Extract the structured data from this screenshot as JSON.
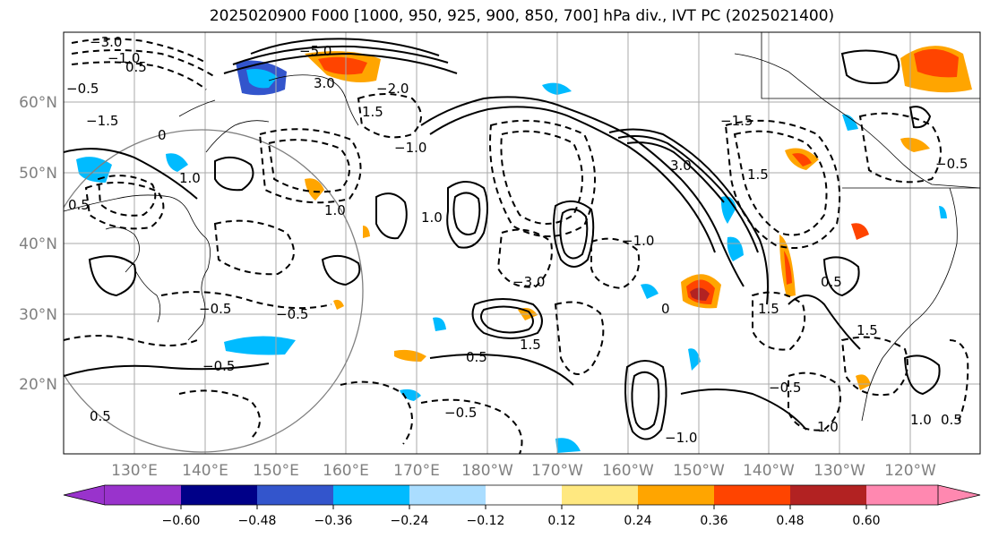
{
  "title": "2025020900 F000 [1000, 950, 925, 900, 850, 700] hPa div., IVT PC (2025021400)",
  "lat_labels": [
    "60°N",
    "50°N",
    "40°N",
    "30°N",
    "20°N"
  ],
  "lon_labels": [
    "130°E",
    "140°E",
    "150°E",
    "160°E",
    "170°E",
    "180°W",
    "170°W",
    "160°W",
    "150°W",
    "140°W",
    "130°W",
    "120°W"
  ],
  "colorbar": {
    "ticks": [
      "−0.60",
      "−0.48",
      "−0.36",
      "−0.24",
      "−0.12",
      "0.12",
      "0.24",
      "0.36",
      "0.48",
      "0.60"
    ],
    "colors": [
      "#9933cc",
      "#000088",
      "#3355cc",
      "#00bbff",
      "#aaddff",
      "#ffffff",
      "#ffe880",
      "#ffa500",
      "#ff4400",
      "#b22222",
      "#ff88b0"
    ]
  },
  "contour_labels": [
    "−3.0",
    "−1.0",
    "0.5",
    "−0.5",
    "−1.5",
    "−5.0",
    "3.0",
    "1.0",
    "−2.0",
    "0",
    "1.5",
    "−1.0",
    "1.0",
    "0.5",
    "−0.5",
    "3.0",
    "1.5",
    "−1.5",
    "−3.0",
    "−1.0",
    "1.0",
    "0.5",
    "−0.5",
    "1.5",
    "−0.5",
    "0",
    "0.5",
    "−0.5",
    "−1.0",
    "1.0",
    "−0.5",
    "0.5",
    "1.5",
    "1.0",
    "1.5",
    "−0.5",
    "0.5"
  ]
}
